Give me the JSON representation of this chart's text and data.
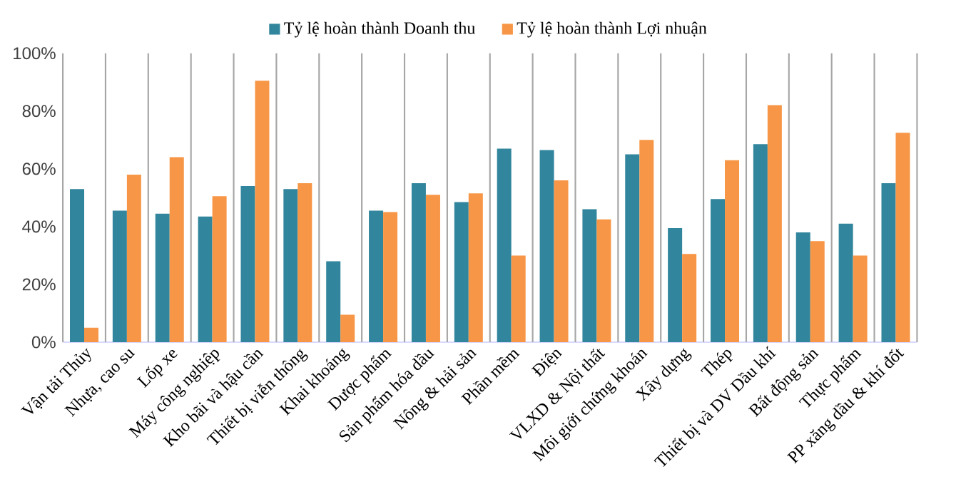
{
  "chart_data": {
    "type": "bar",
    "categories": [
      "Vận tải Thủy",
      "Nhựa, cao su",
      "Lốp xe",
      "Máy công nghiệp",
      "Kho bãi và hậu cần",
      "Thiết bị viễn thông",
      "Khai khoáng",
      "Dược phẩm",
      "Sản phẩm hóa dầu",
      "Nông & hải sản",
      "Phần mềm",
      "Điện",
      "VLXD & Nội thất",
      "Môi giới chứng khoán",
      "Xây dựng",
      "Thép",
      "Thiết bị và DV Dầu khí",
      "Bất động sản",
      "Thực phẩm",
      "PP xăng dầu & khí đốt"
    ],
    "series": [
      {
        "name": "Tỷ lệ hoàn thành Doanh thu",
        "color": "#31859c",
        "values": [
          53,
          45.5,
          44.5,
          43.5,
          54,
          53,
          28,
          45.5,
          55,
          48.5,
          67,
          66.5,
          46,
          65,
          39.5,
          49.5,
          68.5,
          38,
          41,
          55
        ]
      },
      {
        "name": "Tỷ lệ hoàn thành Lợi nhuận",
        "color": "#f79646",
        "values": [
          5,
          58,
          64,
          50.5,
          90.5,
          55,
          9.5,
          45,
          51,
          51.5,
          30,
          56,
          42.5,
          70,
          30.5,
          63,
          82,
          35,
          30,
          72.5
        ]
      }
    ],
    "ylim": [
      0,
      100
    ],
    "yticks": [
      {
        "value": 0,
        "label": "0%"
      },
      {
        "value": 20,
        "label": "20%"
      },
      {
        "value": 40,
        "label": "40%"
      },
      {
        "value": 60,
        "label": "60%"
      },
      {
        "value": 80,
        "label": "80%"
      },
      {
        "value": 100,
        "label": "100%"
      }
    ],
    "grid": "x",
    "legend": "top"
  }
}
